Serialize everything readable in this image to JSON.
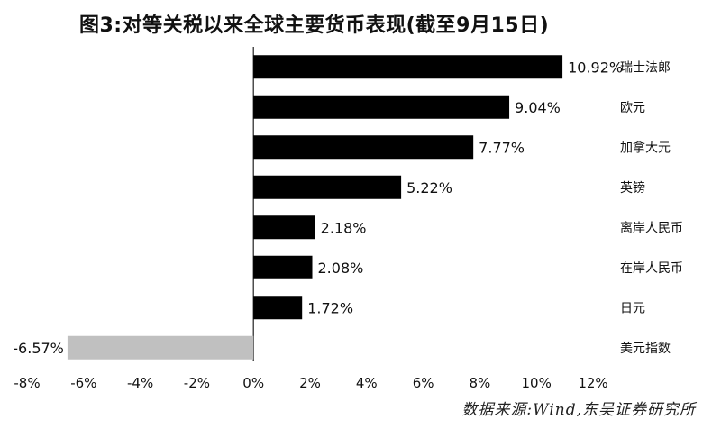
{
  "title": "图3:对等关税以来全球主要货币表现(截至9月15日)",
  "source": "数据来源:Wind,东吴证券研究所",
  "chart_data": {
    "type": "bar",
    "orientation": "horizontal",
    "categories": [
      "瑞士法郎",
      "欧元",
      "加拿大元",
      "英镑",
      "离岸人民币",
      "在岸人民币",
      "日元",
      "美元指数"
    ],
    "values": [
      10.92,
      9.04,
      7.77,
      5.22,
      2.18,
      2.08,
      1.72,
      -6.57
    ],
    "labels": [
      "10.92%",
      "9.04%",
      "7.77%",
      "5.22%",
      "2.18%",
      "2.08%",
      "1.72%",
      "-6.57%"
    ],
    "xlim": [
      -8,
      12
    ],
    "xticks": [
      "-8%",
      "-6%",
      "-4%",
      "-2%",
      "0%",
      "2%",
      "4%",
      "6%",
      "8%",
      "10%",
      "12%"
    ],
    "colors": {
      "positive": "#000000",
      "negative": "#c0c0c0"
    },
    "grid": false
  }
}
